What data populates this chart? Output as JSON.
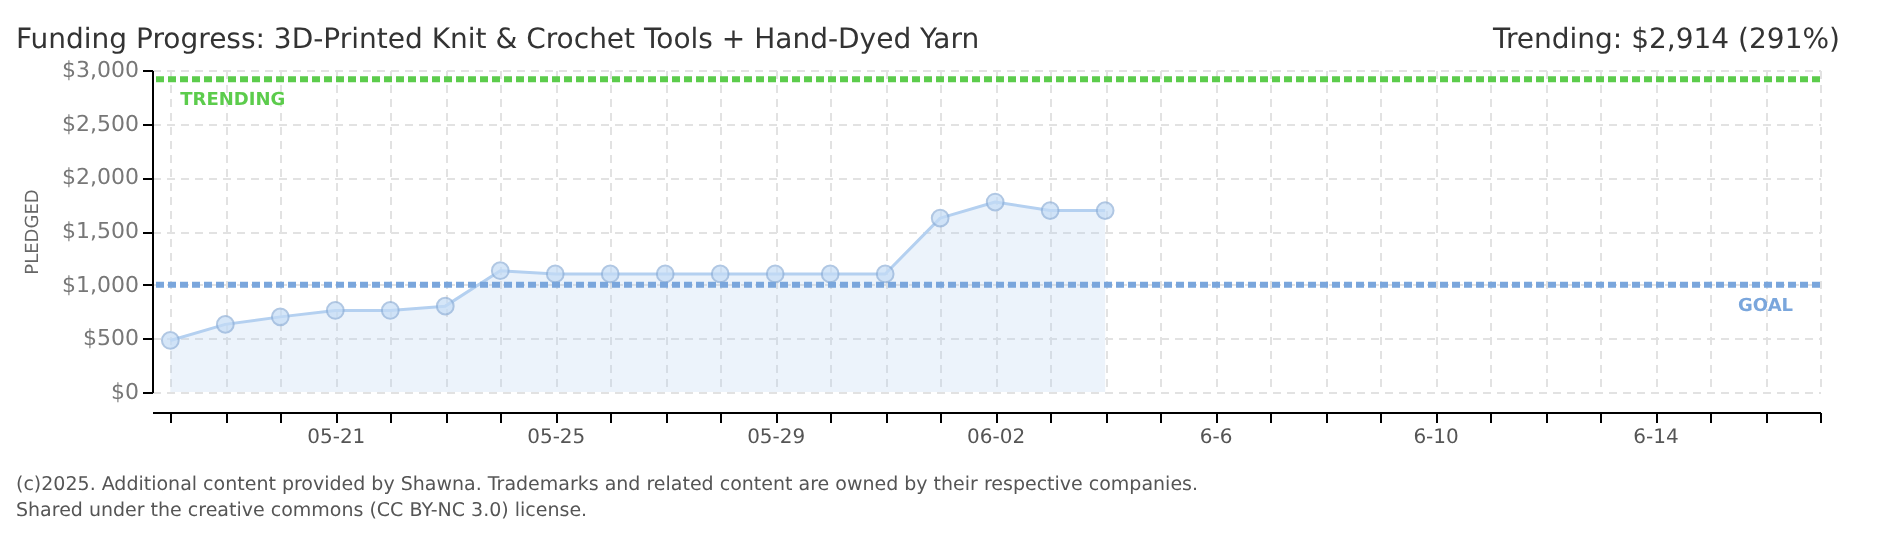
{
  "chart_data": {
    "type": "area",
    "title": "Funding Progress: 3D-Printed Knit & Crochet Tools + Hand-Dyed Yarn",
    "subtitle": "Trending: $2,914 (291%)",
    "ylabel": "PLEDGED",
    "x": [
      "2025-05-18",
      "2025-05-19",
      "2025-05-20",
      "2025-05-21",
      "2025-05-22",
      "2025-05-23",
      "2025-05-24",
      "2025-05-25",
      "2025-05-26",
      "2025-05-27",
      "2025-05-28",
      "2025-05-29",
      "2025-05-30",
      "2025-05-31",
      "2025-06-01",
      "2025-06-02",
      "2025-06-03",
      "2025-06-04"
    ],
    "series": [
      {
        "color": "#b4d0f0",
        "values": [
          480,
          630,
          700,
          760,
          760,
          800,
          1130,
          1100,
          1100,
          1100,
          1100,
          1100,
          1100,
          1100,
          1620,
          1770,
          1690,
          1690
        ]
      }
    ],
    "ylim": [
      0,
      3000
    ],
    "yticks": [
      {
        "value": 0,
        "label": "$0"
      },
      {
        "value": 500,
        "label": "$500"
      },
      {
        "value": 1000,
        "label": "$1,000"
      },
      {
        "value": 1500,
        "label": "$1,500"
      },
      {
        "value": 2000,
        "label": "$2,000"
      },
      {
        "value": 2500,
        "label": "$2,500"
      },
      {
        "value": 3000,
        "label": "$3,000"
      }
    ],
    "xlim": [
      "2025-05-17T16:00",
      "2025-06-17"
    ],
    "xticks": [
      {
        "value": "2025-05-18",
        "label": null
      },
      {
        "value": "2025-05-19",
        "label": null
      },
      {
        "value": "2025-05-20",
        "label": null
      },
      {
        "value": "2025-05-21",
        "label": "05-21"
      },
      {
        "value": "2025-05-22",
        "label": null
      },
      {
        "value": "2025-05-23",
        "label": null
      },
      {
        "value": "2025-05-24",
        "label": null
      },
      {
        "value": "2025-05-25",
        "label": "05-25"
      },
      {
        "value": "2025-05-26",
        "label": null
      },
      {
        "value": "2025-05-27",
        "label": null
      },
      {
        "value": "2025-05-28",
        "label": null
      },
      {
        "value": "2025-05-29",
        "label": "05-29"
      },
      {
        "value": "2025-05-30",
        "label": null
      },
      {
        "value": "2025-05-31",
        "label": null
      },
      {
        "value": "2025-06-01",
        "label": null
      },
      {
        "value": "2025-06-02",
        "label": "06-02"
      },
      {
        "value": "2025-06-03",
        "label": null
      },
      {
        "value": "2025-06-04",
        "label": null
      },
      {
        "value": "2025-06-05",
        "label": null
      },
      {
        "value": "2025-06-06",
        "label": "6-6"
      },
      {
        "value": "2025-06-07",
        "label": null
      },
      {
        "value": "2025-06-08",
        "label": null
      },
      {
        "value": "2025-06-09",
        "label": null
      },
      {
        "value": "2025-06-10",
        "label": "6-10"
      },
      {
        "value": "2025-06-11",
        "label": null
      },
      {
        "value": "2025-06-12",
        "label": null
      },
      {
        "value": "2025-06-13",
        "label": null
      },
      {
        "value": "2025-06-14",
        "label": "6-14"
      },
      {
        "value": "2025-06-15",
        "label": null
      },
      {
        "value": "2025-06-16",
        "label": null
      },
      {
        "value": "2025-06-17",
        "label": null
      }
    ],
    "ref_lines": [
      {
        "axis": "y",
        "value": 2914,
        "label": "TRENDING",
        "color": "#5ccc4c",
        "line_style": "dashed"
      },
      {
        "axis": "y",
        "value": 1000,
        "label": "GOAL",
        "color": "#7aa6dc",
        "line_style": "dashed"
      }
    ],
    "grid": true,
    "marker": "circle",
    "line_style": "solid",
    "annotations": [
      "(c)2025. Additional content provided by Shawna. Trademarks and related content are owned by their respective companies.",
      "Shared under the creative commons (CC BY-NC 3.0) license."
    ]
  }
}
